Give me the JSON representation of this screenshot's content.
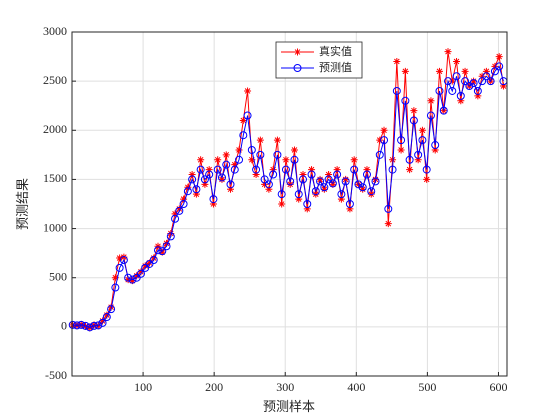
{
  "chart_data": {
    "type": "line",
    "xlabel": "预测样本",
    "ylabel": "预测结果",
    "xlim": [
      0,
      612
    ],
    "ylim": [
      -500,
      3000
    ],
    "xticks": [
      100,
      200,
      300,
      400,
      500,
      600
    ],
    "yticks": [
      -500,
      0,
      500,
      1000,
      1500,
      2000,
      2500,
      3000
    ],
    "grid": true,
    "legend": "top",
    "x": [
      1,
      7,
      13,
      19,
      25,
      31,
      37,
      43,
      49,
      55,
      61,
      67,
      73,
      79,
      85,
      91,
      97,
      103,
      109,
      115,
      121,
      127,
      133,
      139,
      145,
      151,
      157,
      163,
      169,
      175,
      181,
      187,
      193,
      199,
      205,
      211,
      217,
      223,
      229,
      235,
      241,
      247,
      253,
      259,
      265,
      271,
      277,
      283,
      289,
      295,
      301,
      307,
      313,
      319,
      325,
      331,
      337,
      343,
      349,
      355,
      361,
      367,
      373,
      379,
      385,
      391,
      397,
      403,
      409,
      415,
      421,
      427,
      433,
      439,
      445,
      451,
      457,
      463,
      469,
      475,
      481,
      487,
      493,
      499,
      505,
      511,
      517,
      523,
      529,
      535,
      541,
      547,
      553,
      559,
      565,
      571,
      577,
      583,
      589,
      595,
      601,
      607
    ],
    "series": [
      {
        "name": "真实值",
        "color": "#ff0000",
        "marker": "star",
        "values": [
          20,
          10,
          25,
          5,
          -10,
          20,
          10,
          60,
          120,
          200,
          500,
          700,
          710,
          480,
          470,
          520,
          560,
          620,
          650,
          700,
          820,
          760,
          850,
          950,
          1150,
          1200,
          1300,
          1420,
          1550,
          1350,
          1700,
          1450,
          1600,
          1250,
          1700,
          1500,
          1750,
          1400,
          1650,
          1800,
          2100,
          2400,
          1700,
          1550,
          1900,
          1450,
          1400,
          1600,
          1900,
          1250,
          1700,
          1450,
          1800,
          1300,
          1550,
          1200,
          1600,
          1350,
          1500,
          1400,
          1550,
          1450,
          1600,
          1300,
          1500,
          1200,
          1700,
          1450,
          1400,
          1600,
          1350,
          1500,
          1900,
          2000,
          1050,
          1700,
          2700,
          1800,
          2600,
          1600,
          2200,
          1700,
          2000,
          1500,
          2300,
          1800,
          2600,
          2200,
          2800,
          2500,
          2700,
          2300,
          2600,
          2450,
          2500,
          2350,
          2550,
          2600,
          2500,
          2650,
          2750,
          2450
        ]
      },
      {
        "name": "预测值",
        "color": "#0000ff",
        "marker": "circle",
        "values": [
          20,
          15,
          20,
          10,
          -5,
          10,
          15,
          40,
          100,
          180,
          400,
          600,
          680,
          500,
          480,
          500,
          540,
          600,
          640,
          680,
          780,
          770,
          820,
          920,
          1100,
          1180,
          1250,
          1380,
          1500,
          1400,
          1600,
          1500,
          1550,
          1300,
          1600,
          1520,
          1650,
          1450,
          1600,
          1700,
          1950,
          2150,
          1800,
          1600,
          1750,
          1500,
          1450,
          1550,
          1750,
          1350,
          1600,
          1480,
          1700,
          1350,
          1500,
          1250,
          1550,
          1380,
          1480,
          1420,
          1500,
          1460,
          1550,
          1350,
          1480,
          1250,
          1600,
          1450,
          1420,
          1550,
          1380,
          1480,
          1750,
          1900,
          1200,
          1600,
          2400,
          1900,
          2300,
          1700,
          2100,
          1750,
          1900,
          1600,
          2150,
          1850,
          2400,
          2200,
          2500,
          2400,
          2550,
          2350,
          2500,
          2450,
          2480,
          2400,
          2500,
          2550,
          2500,
          2600,
          2650,
          2500
        ]
      }
    ]
  }
}
